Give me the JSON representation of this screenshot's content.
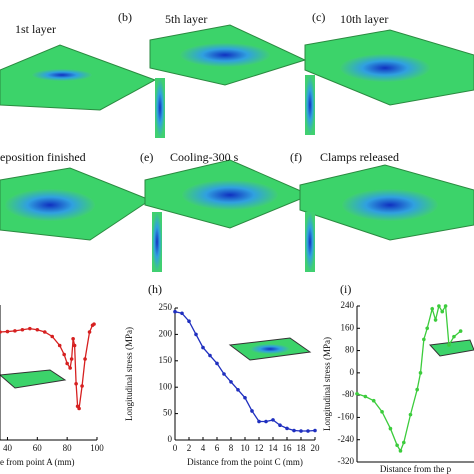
{
  "panels": [
    {
      "caption": "1st layer"
    },
    {
      "label": "(b)",
      "caption": "5th layer"
    },
    {
      "label": "(c)",
      "caption": "10th layer"
    },
    {
      "caption": "eposition finished"
    },
    {
      "label": "(e)",
      "caption": "Cooling-300 s"
    },
    {
      "label": "(f)",
      "caption": "Clamps released"
    }
  ],
  "chart_data": [
    {
      "type": "line",
      "x_label": "e from point A (mm)",
      "xlim": [
        35,
        100
      ],
      "xticks": [
        40,
        60,
        80,
        100
      ],
      "ylim": [
        -300,
        300
      ],
      "series": [
        {
          "color": "#d62020",
          "x": [
            35,
            40,
            45,
            50,
            55,
            60,
            65,
            70,
            75,
            78,
            80,
            82,
            83,
            84,
            85,
            86,
            87,
            88,
            90,
            92,
            95,
            97,
            98
          ],
          "values": [
            180,
            182,
            185,
            190,
            195,
            190,
            180,
            160,
            120,
            80,
            40,
            20,
            60,
            150,
            120,
            -50,
            -150,
            -160,
            -60,
            60,
            180,
            210,
            215
          ]
        }
      ]
    },
    {
      "type": "line",
      "label": "(h)",
      "x_label": "Distance from the point C (mm)",
      "y_label": "Longitudinal stress (MPa)",
      "xlim": [
        0,
        20
      ],
      "xticks": [
        0,
        2,
        4,
        6,
        8,
        10,
        12,
        14,
        16,
        18,
        20
      ],
      "ylim": [
        0,
        250
      ],
      "yticks": [
        0,
        50,
        100,
        150,
        200,
        250
      ],
      "series": [
        {
          "color": "#1f2fbf",
          "x": [
            0,
            1,
            2,
            3,
            4,
            5,
            6,
            7,
            8,
            9,
            10,
            11,
            12,
            13,
            14,
            15,
            16,
            17,
            18,
            19,
            20
          ],
          "values": [
            243,
            240,
            225,
            200,
            175,
            160,
            145,
            125,
            110,
            95,
            80,
            55,
            35,
            35,
            38,
            28,
            22,
            18,
            17,
            17,
            18
          ]
        }
      ]
    },
    {
      "type": "line",
      "label": "(i)",
      "x_label": "Distance from the p",
      "y_label": "Longitudinal stress (MPa)",
      "xlim": [
        0,
        70
      ],
      "ylim": [
        -320,
        240
      ],
      "yticks": [
        240,
        160,
        80,
        0,
        -80,
        -160,
        -240,
        -320
      ],
      "series": [
        {
          "color": "#3ccc3c",
          "x": [
            0,
            5,
            10,
            15,
            20,
            24,
            26,
            28,
            32,
            36,
            38,
            40,
            42,
            45,
            47,
            49,
            51,
            53,
            55,
            58,
            62
          ],
          "values": [
            -75,
            -85,
            -100,
            -140,
            -200,
            -260,
            -280,
            -250,
            -150,
            -60,
            0,
            120,
            160,
            230,
            190,
            240,
            220,
            240,
            100,
            130,
            150
          ]
        }
      ]
    }
  ]
}
